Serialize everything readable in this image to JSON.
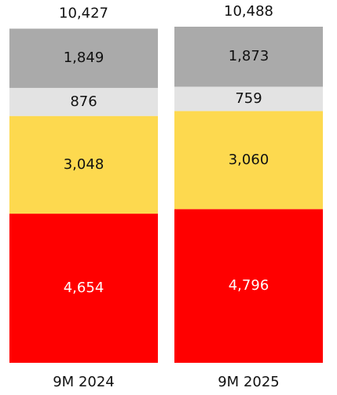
{
  "chart_data": {
    "type": "stacked_bar",
    "categories": [
      "9M 2024",
      "9M 2025"
    ],
    "series": [
      {
        "color": "#ff0000",
        "label_color": "#ffffff",
        "values": [
          4654,
          4796
        ],
        "value_labels": [
          "4,654",
          "4,796"
        ]
      },
      {
        "color": "#fdd94f",
        "label_color": "#111111",
        "values": [
          3048,
          3060
        ],
        "value_labels": [
          "3,048",
          "3,060"
        ]
      },
      {
        "color": "#e3e3e3",
        "label_color": "#111111",
        "values": [
          876,
          759
        ],
        "value_labels": [
          "876",
          "759"
        ]
      },
      {
        "color": "#aaaaaa",
        "label_color": "#111111",
        "values": [
          1849,
          1873
        ],
        "value_labels": [
          "1,849",
          "1,873"
        ]
      }
    ],
    "totals": [
      10427,
      10488
    ],
    "total_labels": [
      "10,427",
      "10,488"
    ]
  }
}
